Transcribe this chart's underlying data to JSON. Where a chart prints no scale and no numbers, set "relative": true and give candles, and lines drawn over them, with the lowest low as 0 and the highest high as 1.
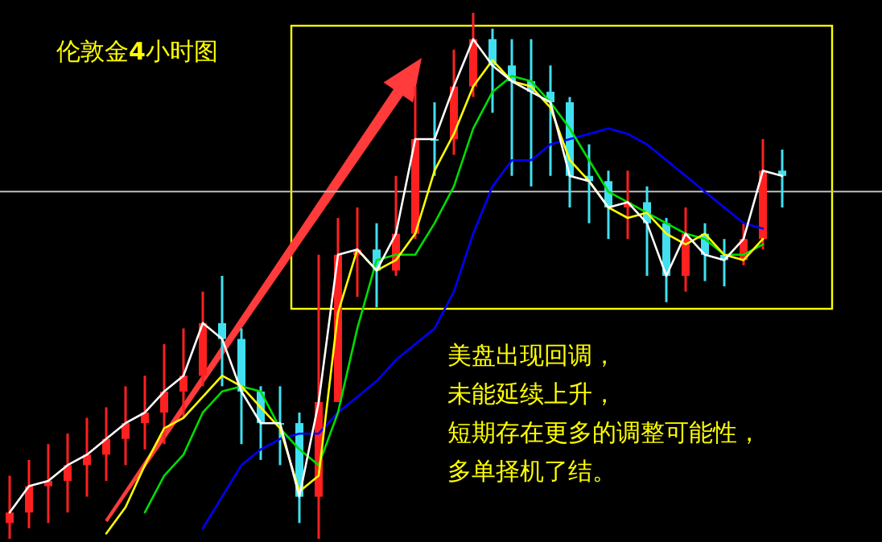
{
  "chart_data": {
    "type": "candlestick",
    "relative": true,
    "title": "伦敦金**4**小时图",
    "annotations": [
      "美盘出现回调，",
      "未能延续上升，",
      "短期存在更多的调整可能性，",
      "多单择机了结。"
    ],
    "categories": [
      null,
      null,
      null,
      null,
      null,
      null,
      null,
      null,
      null,
      null,
      null,
      null,
      null,
      null,
      null,
      null,
      null,
      null,
      null,
      null,
      null,
      null,
      null,
      null,
      null,
      null,
      null,
      null,
      null,
      null,
      null,
      null,
      null,
      null,
      null,
      null,
      null,
      null,
      null,
      null,
      null
    ],
    "ohlc": [
      [
        0.03,
        0.12,
        0,
        0.05
      ],
      [
        0.05,
        0.15,
        0.02,
        0.1
      ],
      [
        0.1,
        0.18,
        0.03,
        0.11
      ],
      [
        0.11,
        0.2,
        0.05,
        0.14
      ],
      [
        0.14,
        0.23,
        0.08,
        0.16
      ],
      [
        0.16,
        0.25,
        0.11,
        0.19
      ],
      [
        0.19,
        0.29,
        0.14,
        0.22
      ],
      [
        0.22,
        0.31,
        0.17,
        0.24
      ],
      [
        0.24,
        0.37,
        0.18,
        0.28
      ],
      [
        0.28,
        0.4,
        0.23,
        0.31
      ],
      [
        0.31,
        0.47,
        0.29,
        0.41
      ],
      [
        0.41,
        0.5,
        0.29,
        0.38
      ],
      [
        0.38,
        0.4,
        0.18,
        0.28
      ],
      [
        0.28,
        0.29,
        0.15,
        0.22
      ],
      [
        0.22,
        0.29,
        0.14,
        0.22
      ],
      [
        0.22,
        0.24,
        0.03,
        0.08
      ],
      [
        0.08,
        0.54,
        0,
        0.26
      ],
      [
        0.26,
        0.61,
        0.26,
        0.54
      ],
      [
        0.54,
        0.63,
        0.46,
        0.55
      ],
      [
        0.55,
        0.6,
        0.44,
        0.51
      ],
      [
        0.51,
        0.69,
        0.5,
        0.58
      ],
      [
        0.58,
        0.86,
        0.57,
        0.76
      ],
      [
        0.76,
        0.83,
        0.69,
        0.76
      ],
      [
        0.76,
        0.93,
        0.73,
        0.86
      ],
      [
        0.86,
        1,
        0.84,
        0.95
      ],
      [
        0.95,
        0.97,
        0.81,
        0.9
      ],
      [
        0.9,
        0.95,
        0.69,
        0.87
      ],
      [
        0.87,
        0.95,
        0.67,
        0.85
      ],
      [
        0.85,
        0.9,
        0.69,
        0.83
      ],
      [
        0.83,
        0.84,
        0.63,
        0.69
      ],
      [
        0.69,
        0.75,
        0.6,
        0.68
      ],
      [
        0.68,
        0.7,
        0.57,
        0.63
      ],
      [
        0.63,
        0.7,
        0.57,
        0.64
      ],
      [
        0.64,
        0.67,
        0.5,
        0.6
      ],
      [
        0.6,
        0.61,
        0.45,
        0.5
      ],
      [
        0.5,
        0.63,
        0.47,
        0.58
      ],
      [
        0.58,
        0.6,
        0.49,
        0.54
      ],
      [
        0.54,
        0.57,
        0.48,
        0.53
      ],
      [
        0.53,
        0.6,
        0.52,
        0.57
      ],
      [
        0.57,
        0.76,
        0.55,
        0.7
      ],
      [
        0.7,
        0.74,
        0.63,
        0.69
      ]
    ],
    "colors": [
      "#ff2020",
      "#ff2020",
      "#ff2020",
      "#ff2020",
      "#ff2020",
      "#ff2020",
      "#ff2020",
      "#ff2020",
      "#ff2020",
      "#ff2020",
      "#ff2020",
      "#40e0f0",
      "#40e0f0",
      "#40e0f0",
      "#40e0f0",
      "#40e0f0",
      "#ff2020",
      "#ff2020",
      "#ff2020",
      "#40e0f0",
      "#ff2020",
      "#ff2020",
      "#40e0f0",
      "#ff2020",
      "#ff2020",
      "#40e0f0",
      "#40e0f0",
      "#40e0f0",
      "#40e0f0",
      "#40e0f0",
      "#40e0f0",
      "#40e0f0",
      "#ff2020",
      "#40e0f0",
      "#40e0f0",
      "#ff2020",
      "#40e0f0",
      "#40e0f0",
      "#ff2020",
      "#ff2020",
      "#40e0f0"
    ],
    "series": [
      {
        "type": "line",
        "color": "#0000ff",
        "values": [
          null,
          null,
          null,
          null,
          null,
          null,
          null,
          null,
          null,
          null,
          0.02,
          0.08,
          0.14,
          0.17,
          0.19,
          0.2,
          0.2,
          0.24,
          0.27,
          0.3,
          0.34,
          0.37,
          0.4,
          0.47,
          0.58,
          0.67,
          0.72,
          0.72,
          0.75,
          0.76,
          0.77,
          0.78,
          0.77,
          0.75,
          0.72,
          0.69,
          0.66,
          0.63,
          0.6,
          0.59,
          null
        ]
      },
      {
        "type": "line",
        "color": "#00dd00",
        "values": [
          null,
          null,
          null,
          null,
          null,
          null,
          null,
          0.05,
          0.12,
          0.16,
          0.24,
          0.28,
          0.29,
          0.28,
          0.21,
          0.17,
          0.14,
          0.24,
          0.4,
          0.53,
          0.54,
          0.54,
          0.6,
          0.67,
          0.78,
          0.85,
          0.88,
          0.87,
          0.83,
          0.78,
          0.72,
          0.66,
          0.64,
          0.62,
          0.6,
          0.58,
          0.57,
          0.54,
          0.54,
          0.56,
          null
        ]
      },
      {
        "type": "line",
        "color": "#ffff00",
        "values": [
          null,
          null,
          null,
          null,
          null,
          0.01,
          0.06,
          0.14,
          0.21,
          0.23,
          0.27,
          0.31,
          0.29,
          0.25,
          0.21,
          0.09,
          0.12,
          0.43,
          0.55,
          0.51,
          0.53,
          0.58,
          0.7,
          0.77,
          0.86,
          0.91,
          0.87,
          0.86,
          0.82,
          0.72,
          0.68,
          0.63,
          0.61,
          0.62,
          0.58,
          0.56,
          0.58,
          0.54,
          0.53,
          0.57,
          null
        ]
      },
      {
        "type": "line",
        "color": "#ffffff",
        "values": [
          0.05,
          0.1,
          0.11,
          0.14,
          0.16,
          0.19,
          0.22,
          0.24,
          0.28,
          0.31,
          0.41,
          0.38,
          0.28,
          0.22,
          0.22,
          0.08,
          0.26,
          0.54,
          0.55,
          0.51,
          0.58,
          0.76,
          0.76,
          0.86,
          0.95,
          0.9,
          0.87,
          0.85,
          0.83,
          0.69,
          0.68,
          0.63,
          0.64,
          0.6,
          0.5,
          0.58,
          0.54,
          0.53,
          0.57,
          0.7,
          0.69
        ]
      }
    ],
    "ref_lines": [
      {
        "axis": "y",
        "value": 0.66,
        "color": "#c0c0c0"
      }
    ]
  }
}
